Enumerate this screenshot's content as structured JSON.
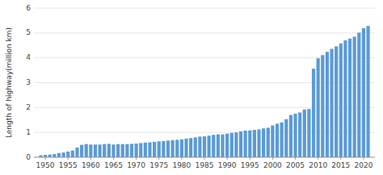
{
  "chart_data": {
    "type": "bar",
    "ylabel": "Length of highway(million km)",
    "x": [
      1949,
      1950,
      1951,
      1952,
      1953,
      1954,
      1955,
      1956,
      1957,
      1958,
      1959,
      1960,
      1961,
      1962,
      1963,
      1964,
      1965,
      1966,
      1967,
      1968,
      1969,
      1970,
      1971,
      1972,
      1973,
      1974,
      1975,
      1976,
      1977,
      1978,
      1979,
      1980,
      1981,
      1982,
      1983,
      1984,
      1985,
      1986,
      1987,
      1988,
      1989,
      1990,
      1991,
      1992,
      1993,
      1994,
      1995,
      1996,
      1997,
      1998,
      1999,
      2000,
      2001,
      2002,
      2003,
      2004,
      2005,
      2006,
      2007,
      2008,
      2009,
      2010,
      2011,
      2012,
      2013,
      2014,
      2015,
      2016,
      2017,
      2018,
      2019,
      2020,
      2021
    ],
    "values": [
      0.08,
      0.1,
      0.11,
      0.13,
      0.17,
      0.19,
      0.23,
      0.27,
      0.39,
      0.5,
      0.53,
      0.51,
      0.51,
      0.51,
      0.53,
      0.54,
      0.51,
      0.53,
      0.53,
      0.53,
      0.54,
      0.55,
      0.57,
      0.59,
      0.6,
      0.62,
      0.64,
      0.65,
      0.67,
      0.69,
      0.7,
      0.72,
      0.75,
      0.77,
      0.8,
      0.83,
      0.84,
      0.87,
      0.9,
      0.92,
      0.92,
      0.95,
      0.98,
      1.0,
      1.04,
      1.07,
      1.08,
      1.1,
      1.12,
      1.16,
      1.19,
      1.28,
      1.35,
      1.4,
      1.53,
      1.7,
      1.75,
      1.8,
      1.92,
      1.94,
      3.56,
      3.98,
      4.11,
      4.24,
      4.36,
      4.46,
      4.58,
      4.7,
      4.77,
      4.85,
      5.01,
      5.19,
      5.28
    ],
    "color": "#5b9bd5",
    "xlim": [
      1947.5,
      2022.5
    ],
    "xticks": [
      1950,
      1955,
      1960,
      1965,
      1970,
      1975,
      1980,
      1985,
      1990,
      1995,
      2000,
      2005,
      2010,
      2015,
      2020
    ],
    "ylim": [
      0,
      6
    ],
    "yticks": [
      0,
      1,
      2,
      3,
      4,
      5,
      6
    ],
    "grid": true
  }
}
